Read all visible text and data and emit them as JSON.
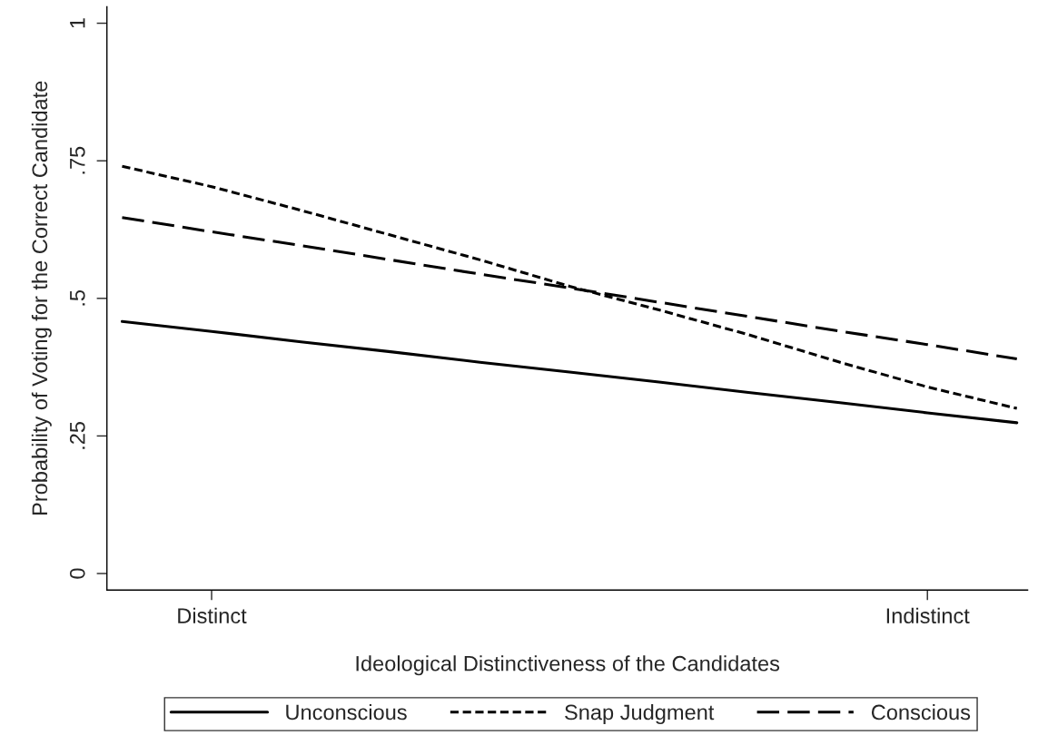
{
  "chart_data": {
    "type": "line",
    "xlabel": "Ideological Distinctiveness of the Candidates",
    "ylabel": "Probability of Voting for the Correct Candidate",
    "categories": [
      null,
      "Distinct",
      null,
      null,
      null,
      null,
      null,
      null,
      null,
      "Indistinct",
      null
    ],
    "ylim": [
      -0.03,
      1.03
    ],
    "yticks": [
      0,
      {
        "value": 0.25,
        "label": ".25"
      },
      {
        "value": 0.5,
        "label": ".5"
      },
      {
        "value": 0.75,
        "label": ".75"
      },
      1
    ],
    "legend": "bottom",
    "marker": "none",
    "series": [
      {
        "name": "Unconscious",
        "color": "#000000",
        "line_style": "solid",
        "values": [
          0.458,
          0.44,
          0.421,
          0.403,
          0.384,
          0.366,
          0.348,
          0.329,
          0.311,
          0.292,
          0.274
        ]
      },
      {
        "name": "Snap Judgment",
        "color": "#000000",
        "line_style": "dotted",
        "values": [
          0.74,
          0.703,
          0.66,
          0.615,
          0.57,
          0.522,
          0.479,
          0.434,
          0.385,
          0.339,
          0.3
        ]
      },
      {
        "name": "Conscious",
        "color": "#000000",
        "line_style": "dashed",
        "values": [
          0.647,
          0.621,
          0.596,
          0.57,
          0.544,
          0.519,
          0.493,
          0.467,
          0.441,
          0.416,
          0.39
        ]
      }
    ]
  }
}
